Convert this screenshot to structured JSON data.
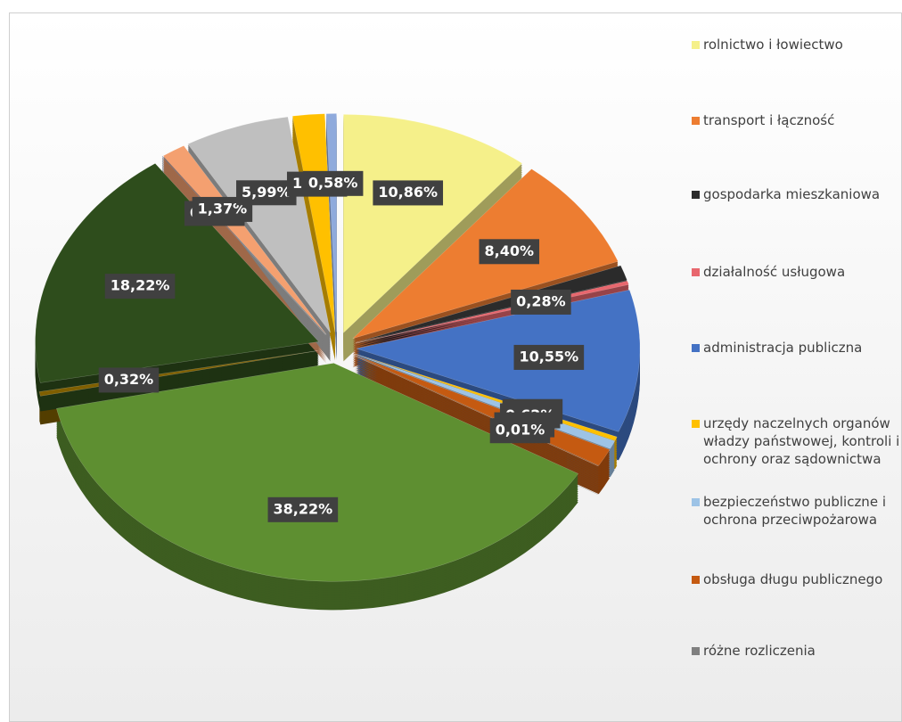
{
  "chart_data": {
    "type": "pie",
    "categories": [
      "rolnictwo i łowiectwo",
      "transport i łączność",
      "gospodarka mieszkaniowa",
      "działalność usługowa",
      "administracja publiczna",
      "urzędy naczelnych organów władzy państwowej, kontroli i ochrony oraz sądownictwa",
      "bezpieczeństwo publiczne i ochrona przeciwpożarowa",
      "obsługa długu publicznego",
      "różne rozliczenia",
      null,
      null,
      null,
      null,
      null,
      null,
      null,
      null
    ],
    "values": [
      10.86,
      8.4,
      1.13,
      0.28,
      10.55,
      0.29,
      0.62,
      1.31,
      0.01,
      38.22,
      0.32,
      18.22,
      0.03,
      1.37,
      5.99,
      1.82,
      0.58
    ],
    "value_labels": [
      "10,86%",
      "8,40%",
      null,
      "0,28%",
      "10,55%",
      "0,29%",
      "0,62%",
      "1,31%",
      "0,01%",
      "38,22%",
      "0,32%",
      "18,22%",
      "0,03%",
      "1,37%",
      "5,99%",
      "1,82%",
      "0,58%"
    ],
    "colors": [
      "#f5f08a",
      "#ed7d31",
      "#2b2b2b",
      "#e8676e",
      "#4472c4",
      "#ffc000",
      "#9dc3e6",
      "#c55a11",
      "#7f7f7f",
      "#5e8f31",
      "#7f5f00",
      "#2e4d1c",
      "#203864",
      "#f4a070",
      "#bfbfbf",
      "#ffc000",
      "#8faadc"
    ],
    "legend": "right"
  }
}
